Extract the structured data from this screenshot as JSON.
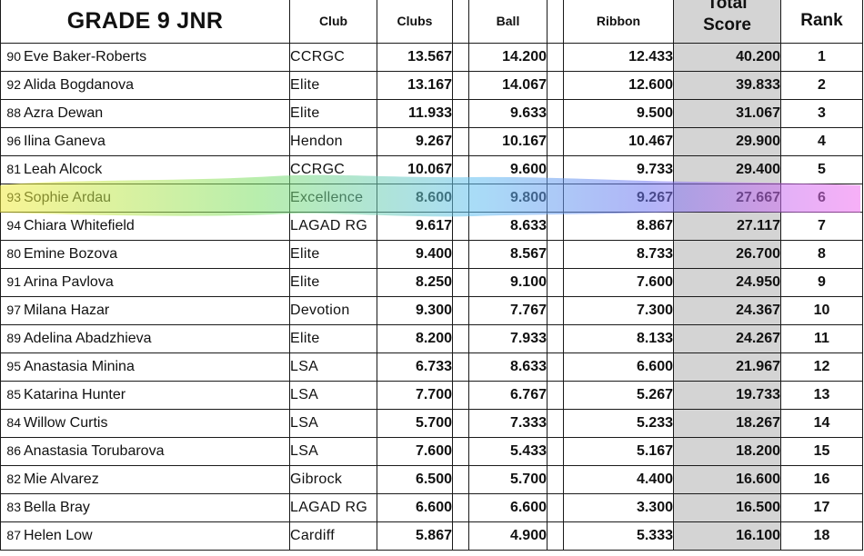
{
  "table": {
    "title": "GRADE 9 JNR",
    "headers": {
      "club": "Club",
      "clubs": "Clubs",
      "ball": "Ball",
      "ribbon": "Ribbon",
      "total_line1": "Total",
      "total_line2": "Score",
      "rank": "Rank"
    },
    "rows": [
      {
        "num": "90",
        "name": "Eve Baker-Roberts",
        "club": "CCRGC",
        "clubs": "13.567",
        "ball": "14.200",
        "ribbon": "12.433",
        "total": "40.200",
        "rank": "1"
      },
      {
        "num": "92",
        "name": "Alida Bogdanova",
        "club": "Elite",
        "clubs": "13.167",
        "ball": "14.067",
        "ribbon": "12.600",
        "total": "39.833",
        "rank": "2"
      },
      {
        "num": "88",
        "name": "Azra Dewan",
        "club": "Elite",
        "clubs": "11.933",
        "ball": "9.633",
        "ribbon": "9.500",
        "total": "31.067",
        "rank": "3"
      },
      {
        "num": "96",
        "name": "Ilina Ganeva",
        "club": "Hendon",
        "clubs": "9.267",
        "ball": "10.167",
        "ribbon": "10.467",
        "total": "29.900",
        "rank": "4"
      },
      {
        "num": "81",
        "name": "Leah Alcock",
        "club": "CCRGC",
        "clubs": "10.067",
        "ball": "9.600",
        "ribbon": "9.733",
        "total": "29.400",
        "rank": "5"
      },
      {
        "num": "93",
        "name": "Sophie Ardau",
        "club": "Excellence",
        "clubs": "8.600",
        "ball": "9.800",
        "ribbon": "9.267",
        "total": "27.667",
        "rank": "6"
      },
      {
        "num": "94",
        "name": "Chiara Whitefield",
        "club": "LAGAD RG",
        "clubs": "9.617",
        "ball": "8.633",
        "ribbon": "8.867",
        "total": "27.117",
        "rank": "7"
      },
      {
        "num": "80",
        "name": "Emine Bozova",
        "club": "Elite",
        "clubs": "9.400",
        "ball": "8.567",
        "ribbon": "8.733",
        "total": "26.700",
        "rank": "8"
      },
      {
        "num": "91",
        "name": "Arina Pavlova",
        "club": "Elite",
        "clubs": "8.250",
        "ball": "9.100",
        "ribbon": "7.600",
        "total": "24.950",
        "rank": "9"
      },
      {
        "num": "97",
        "name": "Milana Hazar",
        "club": "Devotion",
        "clubs": "9.300",
        "ball": "7.767",
        "ribbon": "7.300",
        "total": "24.367",
        "rank": "10"
      },
      {
        "num": "89",
        "name": "Adelina Abadzhieva",
        "club": "Elite",
        "clubs": "8.200",
        "ball": "7.933",
        "ribbon": "8.133",
        "total": "24.267",
        "rank": "11"
      },
      {
        "num": "95",
        "name": "Anastasia Minina",
        "club": "LSA",
        "clubs": "6.733",
        "ball": "8.633",
        "ribbon": "6.600",
        "total": "21.967",
        "rank": "12"
      },
      {
        "num": "85",
        "name": "Katarina Hunter",
        "club": "LSA",
        "clubs": "7.700",
        "ball": "6.767",
        "ribbon": "5.267",
        "total": "19.733",
        "rank": "13"
      },
      {
        "num": "84",
        "name": "Willow Curtis",
        "club": "LSA",
        "clubs": "5.700",
        "ball": "7.333",
        "ribbon": "5.233",
        "total": "18.267",
        "rank": "14"
      },
      {
        "num": "86",
        "name": "Anastasia Torubarova",
        "club": "LSA",
        "clubs": "7.600",
        "ball": "5.433",
        "ribbon": "5.167",
        "total": "18.200",
        "rank": "15"
      },
      {
        "num": "82",
        "name": "Mie Alvarez",
        "club": "Gibrock",
        "clubs": "6.500",
        "ball": "5.700",
        "ribbon": "4.400",
        "total": "16.600",
        "rank": "16"
      },
      {
        "num": "83",
        "name": "Bella Bray",
        "club": "LAGAD RG",
        "clubs": "6.600",
        "ball": "6.600",
        "ribbon": "3.300",
        "total": "16.500",
        "rank": "17"
      },
      {
        "num": "87",
        "name": "Helen Low",
        "club": "Cardiff",
        "clubs": "5.867",
        "ball": "4.900",
        "ribbon": "5.333",
        "total": "16.100",
        "rank": "18"
      }
    ]
  },
  "highlight": {
    "row": "Sophie Ardau",
    "colors": [
      "#f2ec3c",
      "#7ee06a",
      "#62c0f0",
      "#7078f0",
      "#c06ef0",
      "#f070f0"
    ]
  },
  "colors": {
    "total_column_bg": "#d4d4d4",
    "grid_line": "#1a1a1a"
  }
}
